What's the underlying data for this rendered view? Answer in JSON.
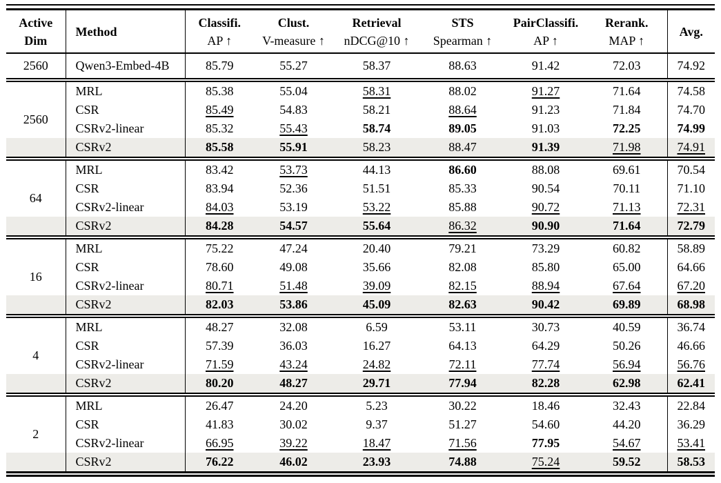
{
  "table": {
    "highlight_color": "#edece8",
    "header": {
      "active_dim": [
        "Active",
        "Dim"
      ],
      "method": "Method",
      "metrics": [
        [
          "Classifi.",
          "AP ↑"
        ],
        [
          "Clust.",
          "V-measure ↑"
        ],
        [
          "Retrieval",
          "nDCG@10 ↑"
        ],
        [
          "STS",
          "Spearman ↑"
        ],
        [
          "PairClassifi.",
          "AP ↑"
        ],
        [
          "Rerank.",
          "MAP ↑"
        ]
      ],
      "avg": "Avg."
    },
    "baseline_row": {
      "dim": "2560",
      "method": "Qwen3-Embed-4B",
      "values": [
        "85.79",
        "55.27",
        "58.37",
        "88.63",
        "91.42",
        "72.03",
        "74.92"
      ]
    },
    "groups": [
      {
        "dim": "2560",
        "rows": [
          {
            "method": "MRL",
            "highlight": false,
            "cells": [
              [
                "85.38",
                "n"
              ],
              [
                "55.04",
                "n"
              ],
              [
                "58.31",
                "u"
              ],
              [
                "88.02",
                "n"
              ],
              [
                "91.27",
                "u"
              ],
              [
                "71.64",
                "n"
              ],
              [
                "74.58",
                "n"
              ]
            ]
          },
          {
            "method": "CSR",
            "highlight": false,
            "cells": [
              [
                "85.49",
                "u"
              ],
              [
                "54.83",
                "n"
              ],
              [
                "58.21",
                "n"
              ],
              [
                "88.64",
                "u"
              ],
              [
                "91.23",
                "n"
              ],
              [
                "71.84",
                "n"
              ],
              [
                "74.70",
                "n"
              ]
            ]
          },
          {
            "method": "CSRv2-linear",
            "highlight": false,
            "cells": [
              [
                "85.32",
                "n"
              ],
              [
                "55.43",
                "u"
              ],
              [
                "58.74",
                "b"
              ],
              [
                "89.05",
                "b"
              ],
              [
                "91.03",
                "n"
              ],
              [
                "72.25",
                "b"
              ],
              [
                "74.99",
                "b"
              ]
            ]
          },
          {
            "method": "CSRv2",
            "highlight": true,
            "cells": [
              [
                "85.58",
                "b"
              ],
              [
                "55.91",
                "b"
              ],
              [
                "58.23",
                "n"
              ],
              [
                "88.47",
                "n"
              ],
              [
                "91.39",
                "b"
              ],
              [
                "71.98",
                "u"
              ],
              [
                "74.91",
                "u"
              ]
            ]
          }
        ]
      },
      {
        "dim": "64",
        "rows": [
          {
            "method": "MRL",
            "highlight": false,
            "cells": [
              [
                "83.42",
                "n"
              ],
              [
                "53.73",
                "u"
              ],
              [
                "44.13",
                "n"
              ],
              [
                "86.60",
                "b"
              ],
              [
                "88.08",
                "n"
              ],
              [
                "69.61",
                "n"
              ],
              [
                "70.54",
                "n"
              ]
            ]
          },
          {
            "method": "CSR",
            "highlight": false,
            "cells": [
              [
                "83.94",
                "n"
              ],
              [
                "52.36",
                "n"
              ],
              [
                "51.51",
                "n"
              ],
              [
                "85.33",
                "n"
              ],
              [
                "90.54",
                "n"
              ],
              [
                "70.11",
                "n"
              ],
              [
                "71.10",
                "n"
              ]
            ]
          },
          {
            "method": "CSRv2-linear",
            "highlight": false,
            "cells": [
              [
                "84.03",
                "u"
              ],
              [
                "53.19",
                "n"
              ],
              [
                "53.22",
                "u"
              ],
              [
                "85.88",
                "n"
              ],
              [
                "90.72",
                "u"
              ],
              [
                "71.13",
                "u"
              ],
              [
                "72.31",
                "u"
              ]
            ]
          },
          {
            "method": "CSRv2",
            "highlight": true,
            "cells": [
              [
                "84.28",
                "b"
              ],
              [
                "54.57",
                "b"
              ],
              [
                "55.64",
                "b"
              ],
              [
                "86.32",
                "u"
              ],
              [
                "90.90",
                "b"
              ],
              [
                "71.64",
                "b"
              ],
              [
                "72.79",
                "b"
              ]
            ]
          }
        ]
      },
      {
        "dim": "16",
        "rows": [
          {
            "method": "MRL",
            "highlight": false,
            "cells": [
              [
                "75.22",
                "n"
              ],
              [
                "47.24",
                "n"
              ],
              [
                "20.40",
                "n"
              ],
              [
                "79.21",
                "n"
              ],
              [
                "73.29",
                "n"
              ],
              [
                "60.82",
                "n"
              ],
              [
                "58.89",
                "n"
              ]
            ]
          },
          {
            "method": "CSR",
            "highlight": false,
            "cells": [
              [
                "78.60",
                "n"
              ],
              [
                "49.08",
                "n"
              ],
              [
                "35.66",
                "n"
              ],
              [
                "82.08",
                "n"
              ],
              [
                "85.80",
                "n"
              ],
              [
                "65.00",
                "n"
              ],
              [
                "64.66",
                "n"
              ]
            ]
          },
          {
            "method": "CSRv2-linear",
            "highlight": false,
            "cells": [
              [
                "80.71",
                "u"
              ],
              [
                "51.48",
                "u"
              ],
              [
                "39.09",
                "u"
              ],
              [
                "82.15",
                "u"
              ],
              [
                "88.94",
                "u"
              ],
              [
                "67.64",
                "u"
              ],
              [
                "67.20",
                "u"
              ]
            ]
          },
          {
            "method": "CSRv2",
            "highlight": true,
            "cells": [
              [
                "82.03",
                "b"
              ],
              [
                "53.86",
                "b"
              ],
              [
                "45.09",
                "b"
              ],
              [
                "82.63",
                "b"
              ],
              [
                "90.42",
                "b"
              ],
              [
                "69.89",
                "b"
              ],
              [
                "68.98",
                "b"
              ]
            ]
          }
        ]
      },
      {
        "dim": "4",
        "rows": [
          {
            "method": "MRL",
            "highlight": false,
            "cells": [
              [
                "48.27",
                "n"
              ],
              [
                "32.08",
                "n"
              ],
              [
                "6.59",
                "n"
              ],
              [
                "53.11",
                "n"
              ],
              [
                "30.73",
                "n"
              ],
              [
                "40.59",
                "n"
              ],
              [
                "36.74",
                "n"
              ]
            ]
          },
          {
            "method": "CSR",
            "highlight": false,
            "cells": [
              [
                "57.39",
                "n"
              ],
              [
                "36.03",
                "n"
              ],
              [
                "16.27",
                "n"
              ],
              [
                "64.13",
                "n"
              ],
              [
                "64.29",
                "n"
              ],
              [
                "50.26",
                "n"
              ],
              [
                "46.66",
                "n"
              ]
            ]
          },
          {
            "method": "CSRv2-linear",
            "highlight": false,
            "cells": [
              [
                "71.59",
                "u"
              ],
              [
                "43.24",
                "u"
              ],
              [
                "24.82",
                "u"
              ],
              [
                "72.11",
                "u"
              ],
              [
                "77.74",
                "u"
              ],
              [
                "56.94",
                "u"
              ],
              [
                "56.76",
                "u"
              ]
            ]
          },
          {
            "method": "CSRv2",
            "highlight": true,
            "cells": [
              [
                "80.20",
                "b"
              ],
              [
                "48.27",
                "b"
              ],
              [
                "29.71",
                "b"
              ],
              [
                "77.94",
                "b"
              ],
              [
                "82.28",
                "b"
              ],
              [
                "62.98",
                "b"
              ],
              [
                "62.41",
                "b"
              ]
            ]
          }
        ]
      },
      {
        "dim": "2",
        "rows": [
          {
            "method": "MRL",
            "highlight": false,
            "cells": [
              [
                "26.47",
                "n"
              ],
              [
                "24.20",
                "n"
              ],
              [
                "5.23",
                "n"
              ],
              [
                "30.22",
                "n"
              ],
              [
                "18.46",
                "n"
              ],
              [
                "32.43",
                "n"
              ],
              [
                "22.84",
                "n"
              ]
            ]
          },
          {
            "method": "CSR",
            "highlight": false,
            "cells": [
              [
                "41.83",
                "n"
              ],
              [
                "30.02",
                "n"
              ],
              [
                "9.37",
                "n"
              ],
              [
                "51.27",
                "n"
              ],
              [
                "54.60",
                "n"
              ],
              [
                "44.20",
                "n"
              ],
              [
                "36.29",
                "n"
              ]
            ]
          },
          {
            "method": "CSRv2-linear",
            "highlight": false,
            "cells": [
              [
                "66.95",
                "u"
              ],
              [
                "39.22",
                "u"
              ],
              [
                "18.47",
                "u"
              ],
              [
                "71.56",
                "u"
              ],
              [
                "77.95",
                "b"
              ],
              [
                "54.67",
                "u"
              ],
              [
                "53.41",
                "u"
              ]
            ]
          },
          {
            "method": "CSRv2",
            "highlight": true,
            "cells": [
              [
                "76.22",
                "b"
              ],
              [
                "46.02",
                "b"
              ],
              [
                "23.93",
                "b"
              ],
              [
                "74.88",
                "b"
              ],
              [
                "75.24",
                "u"
              ],
              [
                "59.52",
                "b"
              ],
              [
                "58.53",
                "b"
              ]
            ]
          }
        ]
      }
    ]
  }
}
